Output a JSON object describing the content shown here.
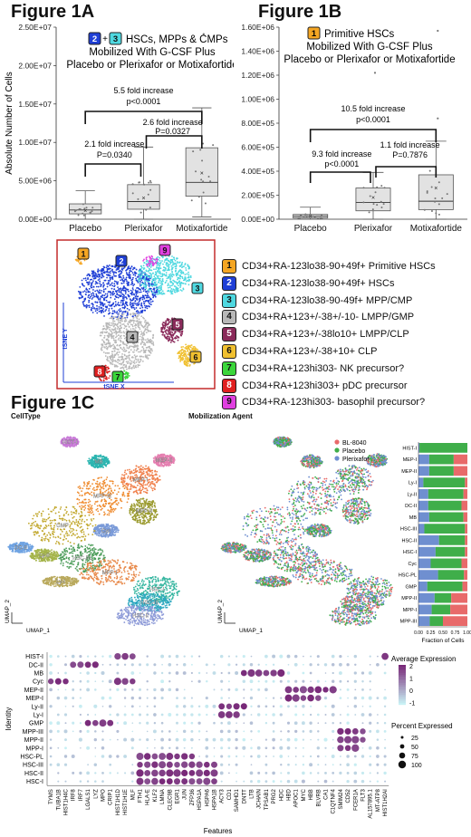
{
  "fig1a": {
    "title": "Figure 1A",
    "badges": [
      "2",
      "+",
      "3"
    ],
    "subtitle_l1": "HSCs, MPPs & CMPs",
    "subtitle_l2": "Mobilized With G-CSF Plus",
    "subtitle_l3": "Placebo or Plerixafor or Motixafortide",
    "ylabel": "Absolute Number of Cells",
    "annot_outer_1": "5.5 fold increase",
    "annot_outer_2": "p<0.0001",
    "annot_left_1": "2.1 fold increase",
    "annot_left_2": "P=0.0340",
    "annot_right_1": "2.6 fold increase",
    "annot_right_2": "P=0.0327"
  },
  "fig1b": {
    "title": "Figure 1B",
    "badge": "1",
    "subtitle_l1": "Primitive HSCs",
    "subtitle_l2": "Mobilized With G-CSF Plus",
    "subtitle_l3": "Placebo or Plerixafor or Motixafortide",
    "annot_outer_1": "10.5 fold increase",
    "annot_outer_2": "p<0.0001",
    "annot_left_1": "9.3 fold increase",
    "annot_left_2": "p<0.0001",
    "annot_right_1": "1.1 fold increase",
    "annot_right_2": "P=0.7876"
  },
  "tsne": {
    "xlabel": "tSNE X",
    "ylabel": "tSNE Y",
    "clusters": [
      {
        "id": "1",
        "color": "#f5a623",
        "label": "CD34+RA-123lo38-90+49f+ Primitive HSCs"
      },
      {
        "id": "2",
        "color": "#1f3fd6",
        "label": "CD34+RA-123lo38-90+49f+ HSCs"
      },
      {
        "id": "3",
        "color": "#4fd8e0",
        "label": "CD34+RA-123lo38-90-49f+ MPP/CMP"
      },
      {
        "id": "4",
        "color": "#b8b8b8",
        "label": "CD34+RA+123+/-38+/-10- LMPP/GMP"
      },
      {
        "id": "5",
        "color": "#8a2a5a",
        "label": "CD34+RA+123+/-38lo10+ LMPP/CLP"
      },
      {
        "id": "6",
        "color": "#f0c030",
        "label": "CD34+RA+123+/-38+10+ CLP"
      },
      {
        "id": "7",
        "color": "#3bd63b",
        "label": "CD34+RA+123hi303- NK precursor?"
      },
      {
        "id": "8",
        "color": "#e02020",
        "label": "CD34+RA+123hi303+ pDC precursor"
      },
      {
        "id": "9",
        "color": "#e040e0",
        "label": "CD34+RA-123hi303- basophil precursor?"
      }
    ]
  },
  "fig1c": {
    "title": "Figure 1C",
    "left_label": "CellType",
    "mid_label": "Mobilization Agent",
    "umap1": "UMAP_1",
    "umap2": "UMAP_2",
    "umap_labels": [
      "HIST-I",
      "MB",
      "MEP-II",
      "MEP-I",
      "MPP-III",
      "MPP-II",
      "Cyc",
      "GMP",
      "DC-II",
      "Ly-II",
      "HSC-PL",
      "MPP-I",
      "Ly-I",
      "HSC-I",
      "HSC-III",
      "HSC-II"
    ],
    "agent_legend": [
      {
        "name": "BL-8040",
        "color": "#e86a6a"
      },
      {
        "name": "Placebo",
        "color": "#3fae4a"
      },
      {
        "name": "Plerixafor",
        "color": "#6f8fd0"
      }
    ],
    "fraction_xlabel": "Fraction of Cells",
    "identity_label": "Identity",
    "features_label": "Features",
    "expr_legend_title": "Average Expression",
    "expr_ticks": [
      "2",
      "1",
      "0",
      "-1"
    ],
    "pct_legend_title": "Percent Expressed",
    "pct_values": [
      "25",
      "50",
      "75",
      "100"
    ]
  },
  "chart_data": [
    {
      "type": "box",
      "title": "HSCs, MPPs & CMPs",
      "categories": [
        "Placebo",
        "Plerixafor",
        "Motixafortide"
      ],
      "ylabel": "Absolute Number of Cells",
      "ylim": [
        0,
        25000000
      ],
      "yticks": [
        "0.00E+00",
        "5.00E+06",
        "1.00E+07",
        "1.50E+07",
        "2.00E+07",
        "2.50E+07"
      ],
      "boxes": [
        {
          "q1": 700000,
          "median": 1200000,
          "q3": 2000000,
          "min": 0,
          "max": 3700000,
          "mean": 1100000
        },
        {
          "q1": 1300000,
          "median": 2300000,
          "q3": 4500000,
          "min": 0,
          "max": 9400000,
          "mean": 2800000
        },
        {
          "q1": 3000000,
          "median": 4800000,
          "q3": 9300000,
          "min": 300000,
          "max": 14500000,
          "mean": 6000000
        }
      ],
      "outliers": [
        {
          "x": "Motixafortide",
          "y": 24100000
        }
      ]
    },
    {
      "type": "box",
      "title": "Primitive HSCs",
      "categories": [
        "Placebo",
        "Plerixafor",
        "Motixafortide"
      ],
      "ylim": [
        0,
        1600000
      ],
      "yticks": [
        "0.00E+00",
        "2.00E+05",
        "4.00E+05",
        "6.00E+05",
        "8.00E+05",
        "1.00E+06",
        "1.20E+06",
        "1.40E+06",
        "1.60E+06"
      ],
      "boxes": [
        {
          "q1": 10000,
          "median": 25000,
          "q3": 40000,
          "min": 0,
          "max": 100000,
          "mean": 25000
        },
        {
          "q1": 70000,
          "median": 140000,
          "q3": 260000,
          "min": 0,
          "max": 390000,
          "mean": 180000
        },
        {
          "q1": 80000,
          "median": 150000,
          "q3": 370000,
          "min": 0,
          "max": 650000,
          "mean": 260000
        }
      ],
      "outliers": [
        {
          "x": "Plerixafor",
          "y": 1220000
        },
        {
          "x": "Motixafortide",
          "y": 840000
        },
        {
          "x": "Motixafortide",
          "y": 1570000
        }
      ]
    },
    {
      "type": "bar",
      "title": "Fraction of Cells",
      "stacked": true,
      "xlim": [
        0,
        1
      ],
      "xticks": [
        "0.00",
        "0.25",
        "0.50",
        "0.75",
        "1.00"
      ],
      "categories": [
        "HIST-I",
        "MEP-I",
        "MEP-II",
        "Ly-I",
        "Ly-II",
        "DC-II",
        "MB",
        "HSC-III",
        "HSC-II",
        "HSC-I",
        "Cyc",
        "HSC-PL",
        "GMP",
        "MPP-II",
        "MPP-I",
        "MPP-III"
      ],
      "series": [
        {
          "name": "Plerixafor",
          "values": [
            0.02,
            0.22,
            0.22,
            0.1,
            0.2,
            0.2,
            0.22,
            0.12,
            0.42,
            0.35,
            0.25,
            0.4,
            0.18,
            0.33,
            0.27,
            0.23
          ]
        },
        {
          "name": "Placebo",
          "values": [
            0.98,
            0.5,
            0.5,
            0.85,
            0.72,
            0.68,
            0.7,
            0.83,
            0.53,
            0.6,
            0.63,
            0.53,
            0.72,
            0.34,
            0.38,
            0.27
          ]
        },
        {
          "name": "BL-8040",
          "values": [
            0.0,
            0.28,
            0.28,
            0.05,
            0.08,
            0.12,
            0.08,
            0.05,
            0.05,
            0.05,
            0.12,
            0.07,
            0.1,
            0.33,
            0.35,
            0.5
          ]
        }
      ]
    },
    {
      "type": "heatmap",
      "title": "Average Expression / Percent Expressed",
      "rows": [
        "HIST-I",
        "DC-II",
        "MB",
        "Cyc",
        "MEP-II",
        "MEP-I",
        "Ly-II",
        "Ly-I",
        "GMP",
        "MPP-III",
        "MPP-II",
        "MPP-I",
        "HSC-PL",
        "HSC-III",
        "HSC-II",
        "HSC-I"
      ],
      "columns": [
        "TYMS",
        "TUBA1B",
        "HIST1H4C",
        "IRF8",
        "IRF7",
        "LGALS1",
        "LYZ",
        "MPO",
        "CRIP1",
        "HIST1H1D",
        "HIST1H1E",
        "MLF",
        "FTH1",
        "HLA-E",
        "KLF2",
        "LMNA",
        "CLEC9B",
        "EGR1",
        "JUN",
        "ZFP36",
        "HSPA1A",
        "HSPA6",
        "HSPA1B",
        "ACY3",
        "CD1",
        "SAMHD1",
        "DNTT",
        "LTB",
        "JCHAIN",
        "TPSAB1",
        "PRG2",
        "HDC",
        "HBD",
        "APOC1",
        "MYC",
        "HBB",
        "BLVRB",
        "CA1",
        "C1QTNF4",
        "SMIM24",
        "CD52",
        "FCER1A",
        "FLT3",
        "AL157895.1",
        "MT-ATP8",
        "HIST1H2AI"
      ],
      "value_range": [
        -1,
        2
      ],
      "percent_range": [
        25,
        100
      ]
    }
  ]
}
